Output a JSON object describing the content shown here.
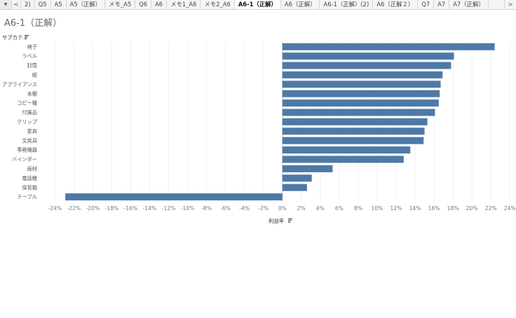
{
  "tabs": {
    "menu_icon": "dropdown-triangle-icon",
    "prev_icon": "chevron-left-icon",
    "next_icon": "chevron-right-icon",
    "items": [
      {
        "label": "2)",
        "active": false
      },
      {
        "label": "Q5",
        "active": false
      },
      {
        "label": "A5",
        "active": false
      },
      {
        "label": "A5（正解）",
        "active": false
      },
      {
        "label": "メモ_A5",
        "active": false
      },
      {
        "label": "Q6",
        "active": false
      },
      {
        "label": "A6",
        "active": false
      },
      {
        "label": "メモ1_A6",
        "active": false
      },
      {
        "label": "メモ2_A6",
        "active": false
      },
      {
        "label": "A6-1（正解）",
        "active": true
      },
      {
        "label": "A6（正解）",
        "active": false
      },
      {
        "label": "A6-1（正解）(2)",
        "active": false
      },
      {
        "label": "A6（正解２）",
        "active": false
      },
      {
        "label": "Q7",
        "active": false
      },
      {
        "label": "A7",
        "active": false
      },
      {
        "label": "A7（正解）",
        "active": false
      }
    ]
  },
  "page": {
    "title": "A6-1（正解）"
  },
  "chart_data": {
    "type": "bar",
    "orientation": "horizontal",
    "row_header": "サブカテ..",
    "xlabel": "利益率",
    "sort_icon": "sort-icon",
    "bar_color": "#4e79a7",
    "categories": [
      "椅子",
      "ラベル",
      "封筒",
      "紙",
      "アプライアンス",
      "本棚",
      "コピー機",
      "付属品",
      "クリップ",
      "家具",
      "文房具",
      "事務機器",
      "バインダー",
      "画材",
      "電話機",
      "保管箱",
      "テーブル"
    ],
    "values": [
      22.4,
      18.1,
      17.8,
      16.9,
      16.7,
      16.6,
      16.5,
      16.1,
      15.3,
      15.0,
      14.9,
      13.5,
      12.8,
      5.3,
      3.1,
      2.6,
      -22.9
    ],
    "xlim": [
      -25.5,
      24.5
    ],
    "xticks": [
      "-24%",
      "-22%",
      "-20%",
      "-18%",
      "-16%",
      "-14%",
      "-12%",
      "-10%",
      "-8%",
      "-6%",
      "-4%",
      "-2%",
      "0%",
      "2%",
      "4%",
      "6%",
      "8%",
      "10%",
      "12%",
      "14%",
      "16%",
      "18%",
      "20%",
      "22%",
      "24%"
    ],
    "xtick_values": [
      -24,
      -22,
      -20,
      -18,
      -16,
      -14,
      -12,
      -10,
      -8,
      -6,
      -4,
      -2,
      0,
      2,
      4,
      6,
      8,
      10,
      12,
      14,
      16,
      18,
      20,
      22,
      24
    ],
    "grid": true
  }
}
